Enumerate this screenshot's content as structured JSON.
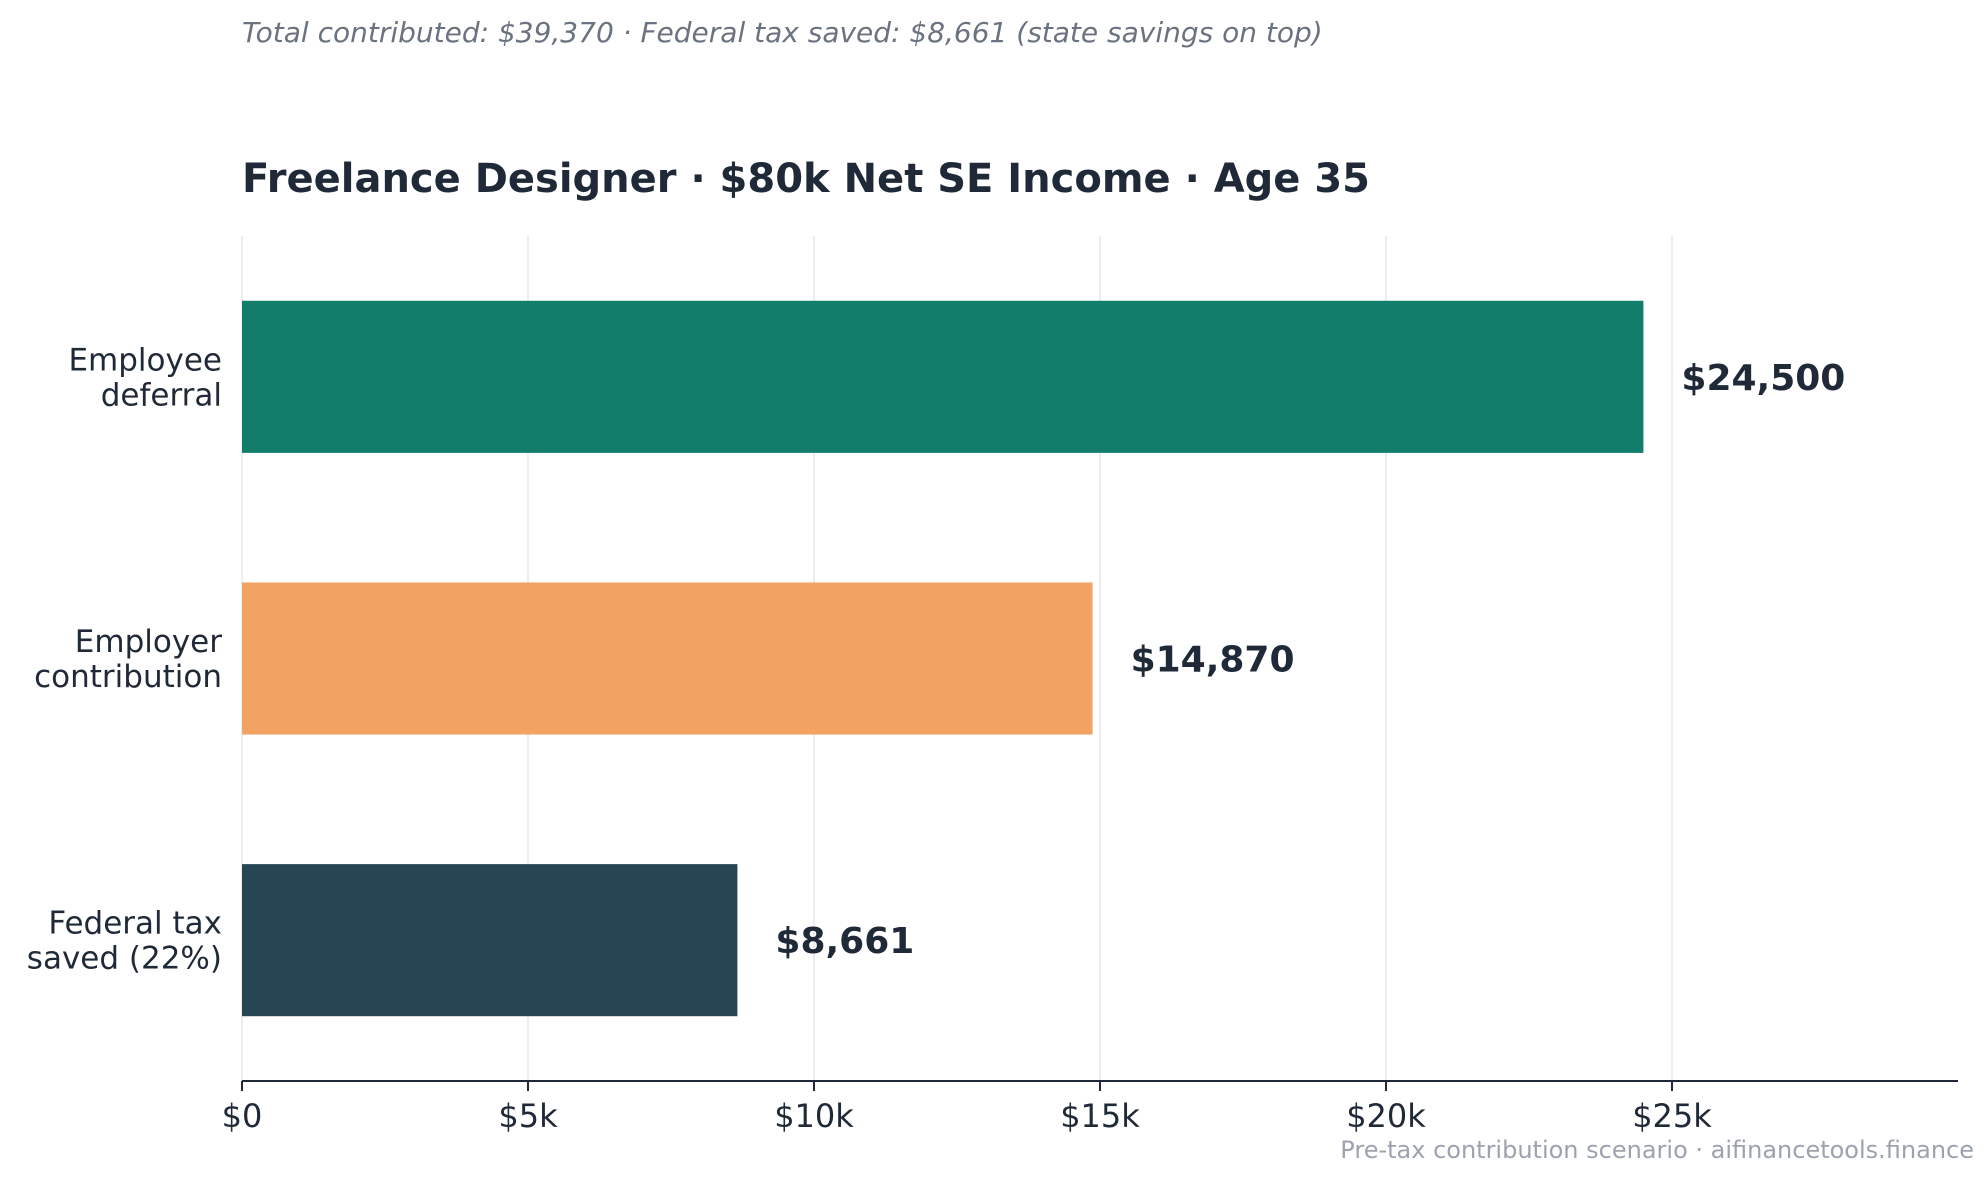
{
  "subtitle": "Total contributed: $39,370 · Federal tax saved: $8,661 (state savings on top)",
  "footer": "Pre-tax contribution scenario · aifinancetools.finance",
  "chart_data": {
    "type": "bar",
    "orientation": "horizontal",
    "title": "Freelance Designer · $80k Net SE Income · Age 35",
    "xlabel": "",
    "ylabel": "",
    "xlim": [
      0,
      30000
    ],
    "ticks": [
      0,
      5000,
      10000,
      15000,
      20000,
      25000
    ],
    "tick_labels": [
      "$0",
      "$5k",
      "$10k",
      "$15k",
      "$20k",
      "$25k"
    ],
    "grid": "vertical",
    "categories": [
      [
        "Employee",
        "deferral"
      ],
      [
        "Employer",
        "contribution"
      ],
      [
        "Federal tax",
        "saved (22%)"
      ]
    ],
    "values": [
      24500,
      14870,
      8661
    ],
    "value_labels": [
      "$24,500",
      "$14,870",
      "$8,661"
    ],
    "colors": [
      "#127d6a",
      "#f2a262",
      "#264653"
    ]
  }
}
